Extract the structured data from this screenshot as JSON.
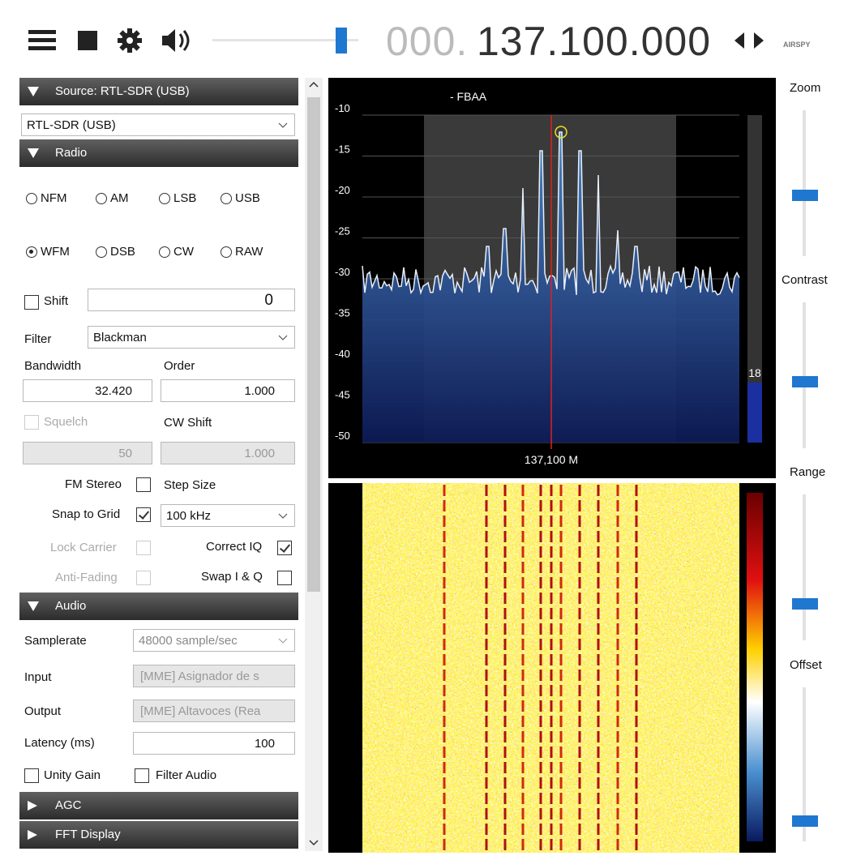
{
  "toolbar": {
    "frequency_prefix": "000.",
    "frequency": "137.100.000",
    "logo": "AIRSPY"
  },
  "panels": {
    "source": {
      "header": "Source: RTL-SDR (USB)",
      "device": "RTL-SDR (USB)"
    },
    "radio": {
      "header": "Radio",
      "modes": [
        "NFM",
        "AM",
        "LSB",
        "USB",
        "WFM",
        "DSB",
        "CW",
        "RAW"
      ],
      "shift_label": "Shift",
      "shift_value": "0",
      "filter_label": "Filter",
      "filter": "Blackman",
      "bandwidth_label": "Bandwidth",
      "bandwidth": "32.420",
      "order_label": "Order",
      "order": "1.000",
      "squelch_label": "Squelch",
      "squelch": "50",
      "cw_shift_label": "CW Shift",
      "cw_shift": "1.000",
      "fm_stereo": "FM Stereo",
      "step_size_label": "Step Size",
      "snap_to_grid": "Snap to Grid",
      "step_size": "100 kHz",
      "lock_carrier": "Lock Carrier",
      "correct_iq": "Correct IQ",
      "anti_fading": "Anti-Fading",
      "swap_iq": "Swap I & Q"
    },
    "audio": {
      "header": "Audio",
      "samplerate_label": "Samplerate",
      "samplerate": "48000 sample/sec",
      "input_label": "Input",
      "input": "[MME] Asignador de s",
      "output_label": "Output",
      "output": "[MME] Altavoces (Rea",
      "latency_label": "Latency (ms)",
      "latency": "100",
      "unity_gain": "Unity Gain",
      "filter_audio": "Filter Audio"
    },
    "agc": {
      "header": "AGC"
    },
    "fft_display": {
      "header": "FFT Display"
    }
  },
  "spectrum": {
    "title": "- FBAA",
    "y_labels": [
      "-10",
      "-15",
      "-20",
      "-25",
      "-30",
      "-35",
      "-40",
      "-45",
      "-50"
    ],
    "center_label": "137,100 M",
    "meter": "18"
  },
  "side_controls": [
    "Zoom",
    "Contrast",
    "Range",
    "Offset"
  ]
}
